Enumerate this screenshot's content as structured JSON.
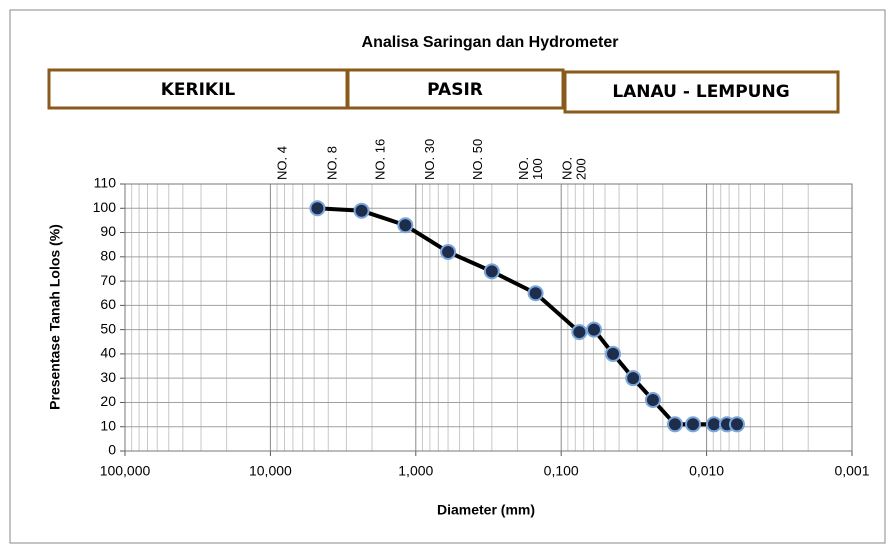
{
  "chart_data": {
    "type": "line",
    "title": "Analisa Saringan dan Hydrometer",
    "bands": [
      "KERIKIL",
      "PASIR",
      "LANAU - LEMPUNG"
    ],
    "x_label": "Diameter (mm)",
    "y_label": "Presentase Tanah Lolos (%)",
    "x_log": true,
    "grid": true,
    "xlim": [
      100,
      0.001
    ],
    "xticks": [
      {
        "value": 100,
        "label": "100,000"
      },
      {
        "value": 10,
        "label": "10,000"
      },
      {
        "value": 1,
        "label": "1,000"
      },
      {
        "value": 0.1,
        "label": "0,100"
      },
      {
        "value": 0.01,
        "label": "0,010"
      },
      {
        "value": 0.001,
        "label": "0,001"
      }
    ],
    "ylim": [
      0,
      110
    ],
    "yticks": [
      0,
      10,
      20,
      30,
      40,
      50,
      60,
      70,
      80,
      90,
      100,
      110
    ],
    "sieve_labels": [
      {
        "x": 8.2,
        "lines": [
          "NO. 4"
        ]
      },
      {
        "x": 3.7,
        "lines": [
          "NO. 8"
        ]
      },
      {
        "x": 1.74,
        "lines": [
          "NO. 16"
        ]
      },
      {
        "x": 0.79,
        "lines": [
          "NO. 30"
        ]
      },
      {
        "x": 0.37,
        "lines": [
          "NO. 50"
        ]
      },
      {
        "x": 0.16,
        "lines": [
          "NO.",
          "100"
        ]
      },
      {
        "x": 0.08,
        "lines": [
          "NO.",
          "200"
        ]
      }
    ],
    "series": [
      {
        "color": "#000000",
        "marker_fill": "#1f2d4d",
        "marker_edge": "#7aa7d9",
        "x": [
          4.75,
          2.36,
          1.18,
          0.6,
          0.3,
          0.15,
          0.075,
          0.0595,
          0.044,
          0.032,
          0.0234,
          0.0165,
          0.0124,
          0.0089,
          0.00724,
          0.00618
        ],
        "values": [
          100,
          99,
          93,
          82,
          74,
          65,
          49,
          50,
          40,
          30,
          21,
          11,
          11,
          11,
          11,
          11
        ]
      }
    ]
  }
}
